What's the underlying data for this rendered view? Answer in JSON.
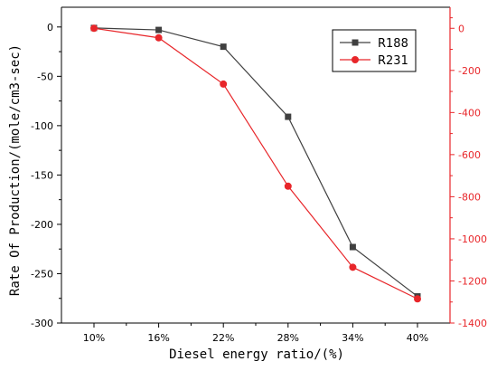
{
  "chart_data": {
    "type": "line",
    "categories": [
      "10%",
      "16%",
      "22%",
      "28%",
      "34%",
      "40%"
    ],
    "xlabel": "Diesel energy ratio/(%)",
    "ylabel": "Rate Of Production/(mole/cm3-sec)",
    "ylim_left": [
      -300,
      20
    ],
    "yticks_left": [
      0,
      -50,
      -100,
      -150,
      -200,
      -250,
      -300
    ],
    "ylim_right": [
      -1400,
      100
    ],
    "yticks_right": [
      0,
      -200,
      -400,
      -600,
      -800,
      -1000,
      -1200,
      -1400
    ],
    "grid": false,
    "legend_position": "top-right",
    "series": [
      {
        "name": "R188",
        "axis": "left",
        "color": "#404040",
        "marker": "square",
        "values": [
          -1,
          -3,
          -20,
          -91,
          -223,
          -273
        ]
      },
      {
        "name": "R231",
        "axis": "right",
        "color": "#e8262a",
        "marker": "circle",
        "values": [
          0,
          -45,
          -265,
          -750,
          -1135,
          -1285
        ]
      }
    ],
    "right_axis_color": "#e8262a"
  }
}
